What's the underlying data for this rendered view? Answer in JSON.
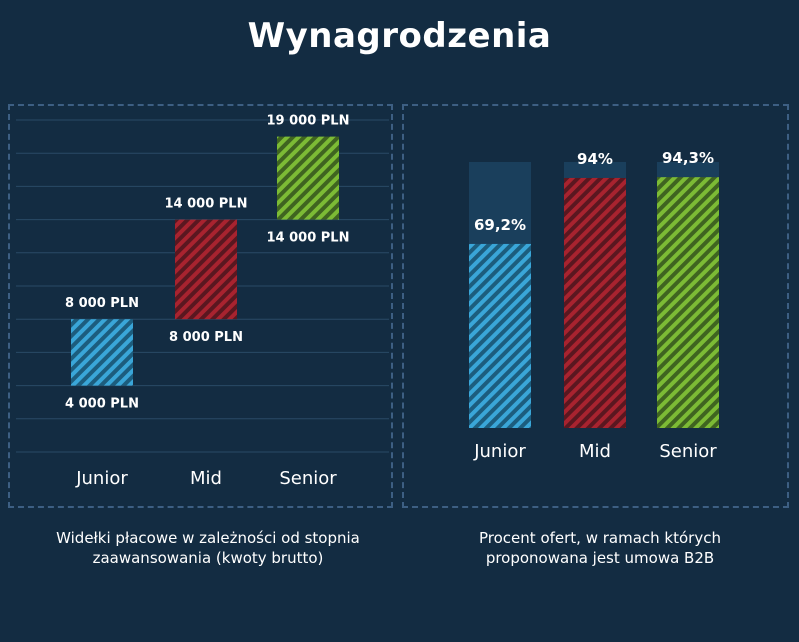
{
  "title": "Wynagrodzenia",
  "colors": {
    "background": "#132c42",
    "junior": "#3aa6d8",
    "mid": "#a8232f",
    "senior": "#7cbb35",
    "track": "#1a3f5c",
    "gridline": "#2a4a66"
  },
  "chart_data": [
    {
      "type": "bar",
      "subtype": "floating-range",
      "title": "Widełki płacowe w zależności od stopnia zaawansowania (kwoty brutto)",
      "categories": [
        "Junior",
        "Mid",
        "Senior"
      ],
      "ranges": [
        {
          "low": 4000,
          "high": 8000,
          "low_label": "4 000 PLN",
          "high_label": "8 000 PLN"
        },
        {
          "low": 8000,
          "high": 14000,
          "low_label": "8 000 PLN",
          "high_label": "14 000 PLN"
        },
        {
          "low": 14000,
          "high": 19000,
          "low_label": "14 000 PLN",
          "high_label": "19 000 PLN"
        }
      ],
      "unit": "PLN",
      "ylim": [
        0,
        20000
      ],
      "grid": true
    },
    {
      "type": "bar",
      "title": "Procent ofert, w ramach których proponowana jest umowa B2B",
      "categories": [
        "Junior",
        "Mid",
        "Senior"
      ],
      "values": [
        69.2,
        94,
        94.3
      ],
      "value_labels": [
        "69,2%",
        "94%",
        "94,3%"
      ],
      "ylim": [
        0,
        100
      ],
      "grid": false
    }
  ],
  "captions": {
    "left": [
      "Widełki płacowe w zależności od stopnia",
      "zaawansowania (kwoty brutto)"
    ],
    "right": [
      "Procent ofert, w ramach których",
      "proponowana jest umowa B2B"
    ]
  }
}
